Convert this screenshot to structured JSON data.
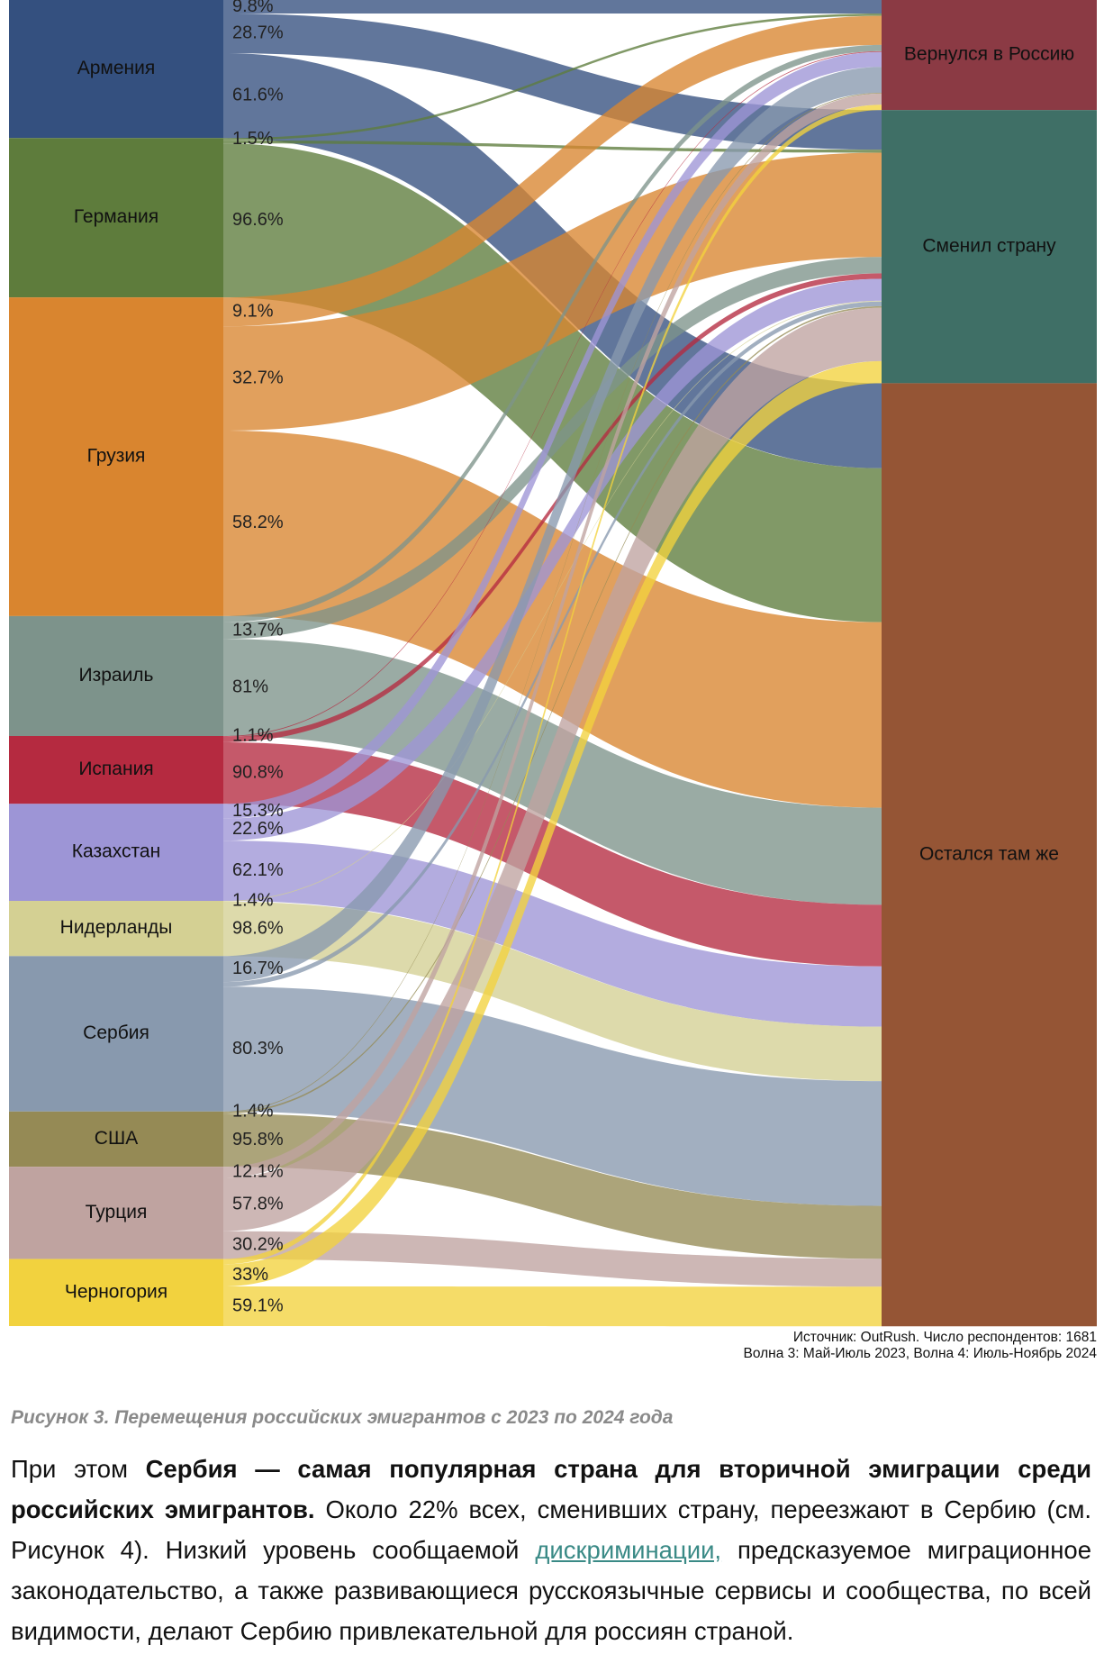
{
  "chart_data": {
    "type": "sankey",
    "sources": [
      "Армения",
      "Германия",
      "Грузия",
      "Израиль",
      "Испания",
      "Казахстан",
      "Нидерланды",
      "Сербия",
      "США",
      "Турция",
      "Черногория"
    ],
    "colors": [
      "#34507f",
      "#5e7c3c",
      "#d9852f",
      "#7d938b",
      "#b52a40",
      "#9d95d6",
      "#d4d093",
      "#8899ae",
      "#958a55",
      "#bfa3a0",
      "#f2d23e"
    ],
    "counts": [
      175,
      202,
      404,
      152,
      86,
      123,
      70,
      197,
      70,
      117,
      85
    ],
    "targets": [
      {
        "name": "Вернулся в Россию",
        "color": "#8b3a44"
      },
      {
        "name": "Сменил страну",
        "color": "#3f6f66"
      },
      {
        "name": "Остался там же",
        "color": "#955535"
      }
    ],
    "flows": [
      [
        9.8,
        28.7,
        61.6
      ],
      [
        1.5,
        1.9,
        96.6
      ],
      [
        9.1,
        32.7,
        58.2
      ],
      [
        5.3,
        13.7,
        81
      ],
      [
        1.1,
        8.1,
        90.8
      ],
      [
        15.3,
        22.6,
        62.1
      ],
      [
        null,
        1.4,
        98.6
      ],
      [
        16.7,
        3.0,
        80.3
      ],
      [
        1.4,
        2.8,
        95.8
      ],
      [
        12.1,
        57.8,
        30.2
      ],
      [
        7.9,
        33,
        59.1
      ]
    ],
    "flow_labels": [
      [
        "9.8%",
        "28.7%",
        "61.6%"
      ],
      [
        "1.5%",
        null,
        "96.6%"
      ],
      [
        "9.1%",
        "32.7%",
        "58.2%"
      ],
      [
        null,
        "13.7%",
        "81%"
      ],
      [
        "1.1%",
        null,
        "90.8%"
      ],
      [
        "15.3%",
        "22.6%",
        "62.1%"
      ],
      [
        null,
        "1.4%",
        "98.6%"
      ],
      [
        "16.7%",
        null,
        "80.3%"
      ],
      [
        "1.4%",
        null,
        "95.8%"
      ],
      [
        "12.1%",
        "57.8%",
        "30.2%"
      ],
      [
        null,
        "33%",
        "59.1%"
      ]
    ],
    "source_note": [
      "Источник: OutRush. Число респондентов: 1681",
      "Волна 3: Май-Июль 2023, Волна 4: Июль-Ноябрь 2024"
    ]
  },
  "caption": "Рисунок 3. Перемещения российских эмигрантов с 2023 по 2024 года",
  "paragraph": [
    "При этом ",
    "Сербия — самая популярная страна для вторичной эмиграции среди российских эмигрантов.",
    " Около 22% всех, сменивших страну, переезжают в Сербию (см. Рисунок 4). Низкий уровень сообщаемой ",
    "дискриминации,",
    " предсказуемое миграционное законодательство, а также развивающиеся русскоязычные сервисы и сообщества, по всей видимости, делают Сербию привлекательной для россиян страной."
  ]
}
